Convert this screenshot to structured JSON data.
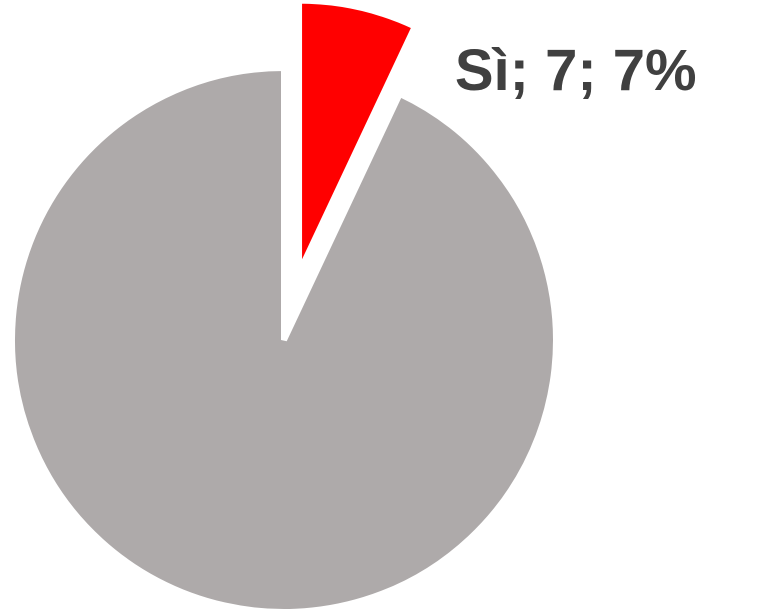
{
  "chart_data": {
    "type": "pie",
    "values": [
      7,
      93
    ],
    "value_labels": [
      "Sì; 7; 7%",
      null
    ],
    "colors": [
      "#ff0000",
      "#aeaaaa"
    ],
    "explode": [
      true,
      false
    ]
  }
}
